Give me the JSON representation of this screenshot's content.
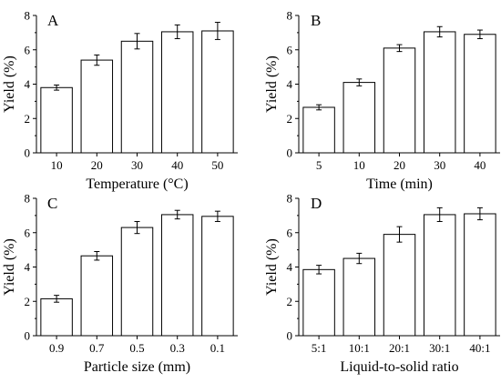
{
  "chart_data": [
    {
      "type": "bar",
      "panel_label": "A",
      "categories": [
        "10",
        "20",
        "30",
        "40",
        "50"
      ],
      "values": [
        3.8,
        5.4,
        6.5,
        7.05,
        7.1
      ],
      "errors": [
        0.15,
        0.3,
        0.45,
        0.4,
        0.5
      ],
      "xlabel": "Temperature (°C)",
      "ylabel": "Yield (%)",
      "ylim": [
        0,
        8
      ],
      "yticks": [
        "0",
        "2",
        "4",
        "6",
        "8"
      ]
    },
    {
      "type": "bar",
      "panel_label": "B",
      "categories": [
        "5",
        "10",
        "20",
        "30",
        "40"
      ],
      "values": [
        2.65,
        4.1,
        6.1,
        7.05,
        6.9
      ],
      "errors": [
        0.15,
        0.2,
        0.2,
        0.3,
        0.25
      ],
      "xlabel": "Time (min)",
      "ylabel": "Yield (%)",
      "ylim": [
        0,
        8
      ],
      "yticks": [
        "0",
        "2",
        "4",
        "6",
        "8"
      ]
    },
    {
      "type": "bar",
      "panel_label": "C",
      "categories": [
        "0.9",
        "0.7",
        "0.5",
        "0.3",
        "0.1"
      ],
      "values": [
        2.15,
        4.65,
        6.3,
        7.05,
        6.95
      ],
      "errors": [
        0.2,
        0.25,
        0.35,
        0.25,
        0.3
      ],
      "xlabel": "Particle size (mm)",
      "ylabel": "Yield (%)",
      "ylim": [
        0,
        8
      ],
      "yticks": [
        "0",
        "2",
        "4",
        "6",
        "8"
      ]
    },
    {
      "type": "bar",
      "panel_label": "D",
      "categories": [
        "5:1",
        "10:1",
        "20:1",
        "30:1",
        "40:1"
      ],
      "values": [
        3.85,
        4.5,
        5.9,
        7.05,
        7.1
      ],
      "errors": [
        0.25,
        0.3,
        0.45,
        0.4,
        0.35
      ],
      "xlabel": "Liquid-to-solid ratio",
      "ylabel": "Yield (%)",
      "ylim": [
        0,
        8
      ],
      "yticks": [
        "0",
        "2",
        "4",
        "6",
        "8"
      ]
    }
  ]
}
